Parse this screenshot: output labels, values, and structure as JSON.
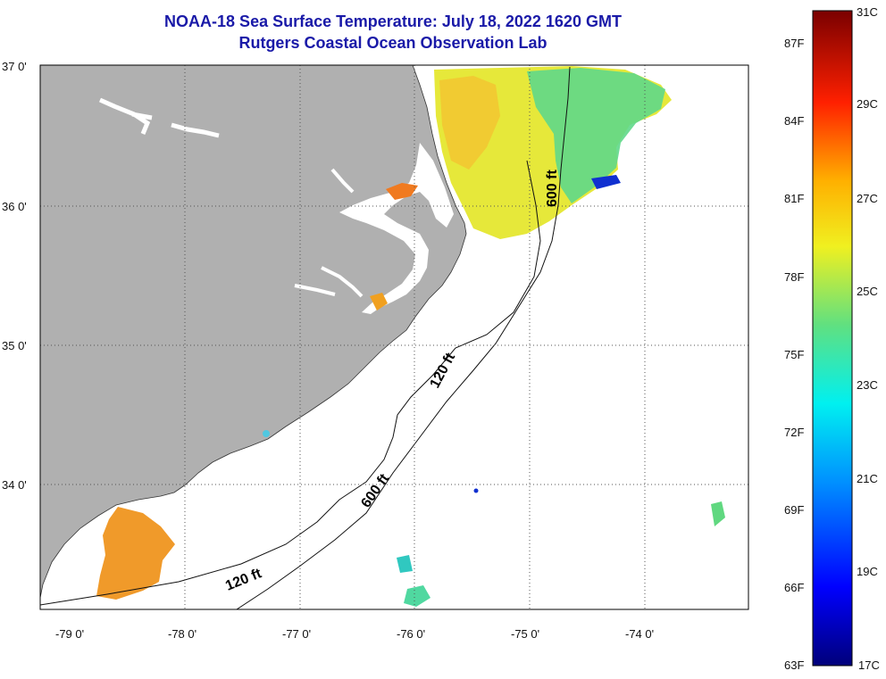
{
  "header": {
    "title": "NOAA-18 Sea Surface Temperature:  July 18, 2022 1620 GMT",
    "subtitle": "Rutgers Coastal Ocean Observation Lab"
  },
  "map": {
    "lat_labels": [
      "37 0'",
      "36 0'",
      "35 0'",
      "34 0'"
    ],
    "lon_labels": [
      "-79 0'",
      "-78 0'",
      "-77 0'",
      "-76 0'",
      "-75 0'",
      "-74 0'"
    ],
    "isobath_labels": [
      "600 ft",
      "120 ft",
      "600 ft",
      "120 ft"
    ],
    "colors": {
      "land": "#b0b0b0",
      "ocean": "#ffffff",
      "warm_sst": "#f09a2a",
      "mid_sst": "#e6e83a",
      "cool_sst": "#5fd88a"
    }
  },
  "colorbar": {
    "f_labels": [
      "87F",
      "84F",
      "81F",
      "78F",
      "75F",
      "72F",
      "69F",
      "66F",
      "63F"
    ],
    "c_labels": [
      "31C",
      "29C",
      "27C",
      "25C",
      "23C",
      "21C",
      "19C",
      "17C"
    ],
    "range_c": [
      17,
      31
    ],
    "range_f": [
      63,
      88
    ]
  }
}
